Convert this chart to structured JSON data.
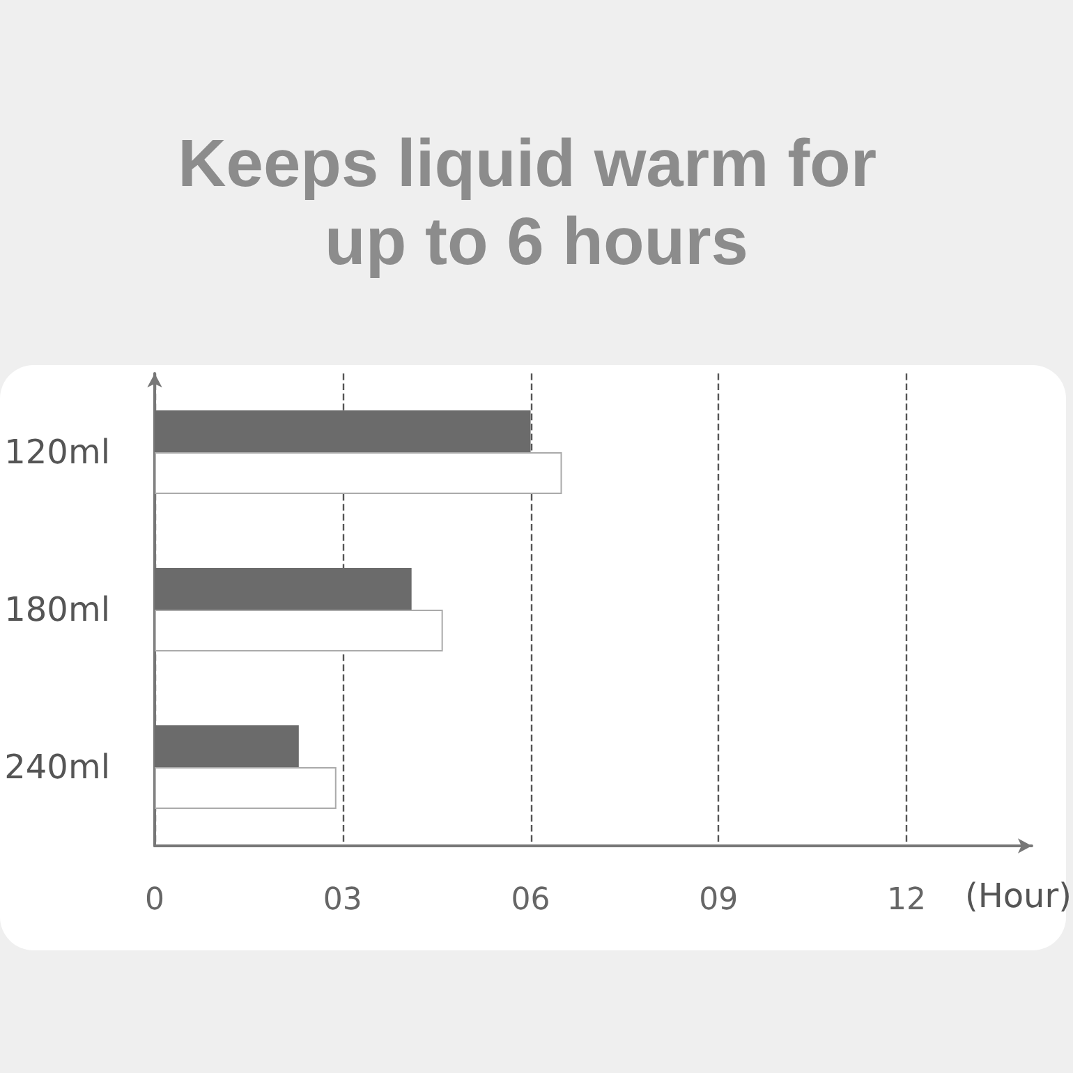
{
  "chart_data": {
    "type": "bar",
    "orientation": "horizontal",
    "title": "Keeps liquid warm for up to 6 hours",
    "xlabel": "(Hour)",
    "categories": [
      "120ml",
      "180ml",
      "240ml"
    ],
    "series": [
      {
        "color": "#6b6b6b",
        "values": [
          6.0,
          4.1,
          2.3
        ]
      },
      {
        "color": "#ffffff",
        "values": [
          6.5,
          4.6,
          2.9
        ]
      }
    ],
    "xlim": [
      0,
      14
    ],
    "xticks": [
      0,
      {
        "value": 3,
        "label": "03"
      },
      {
        "value": 6,
        "label": "06"
      },
      {
        "value": 9,
        "label": "09"
      },
      {
        "value": 12,
        "label": "12"
      }
    ],
    "grid": "x"
  }
}
